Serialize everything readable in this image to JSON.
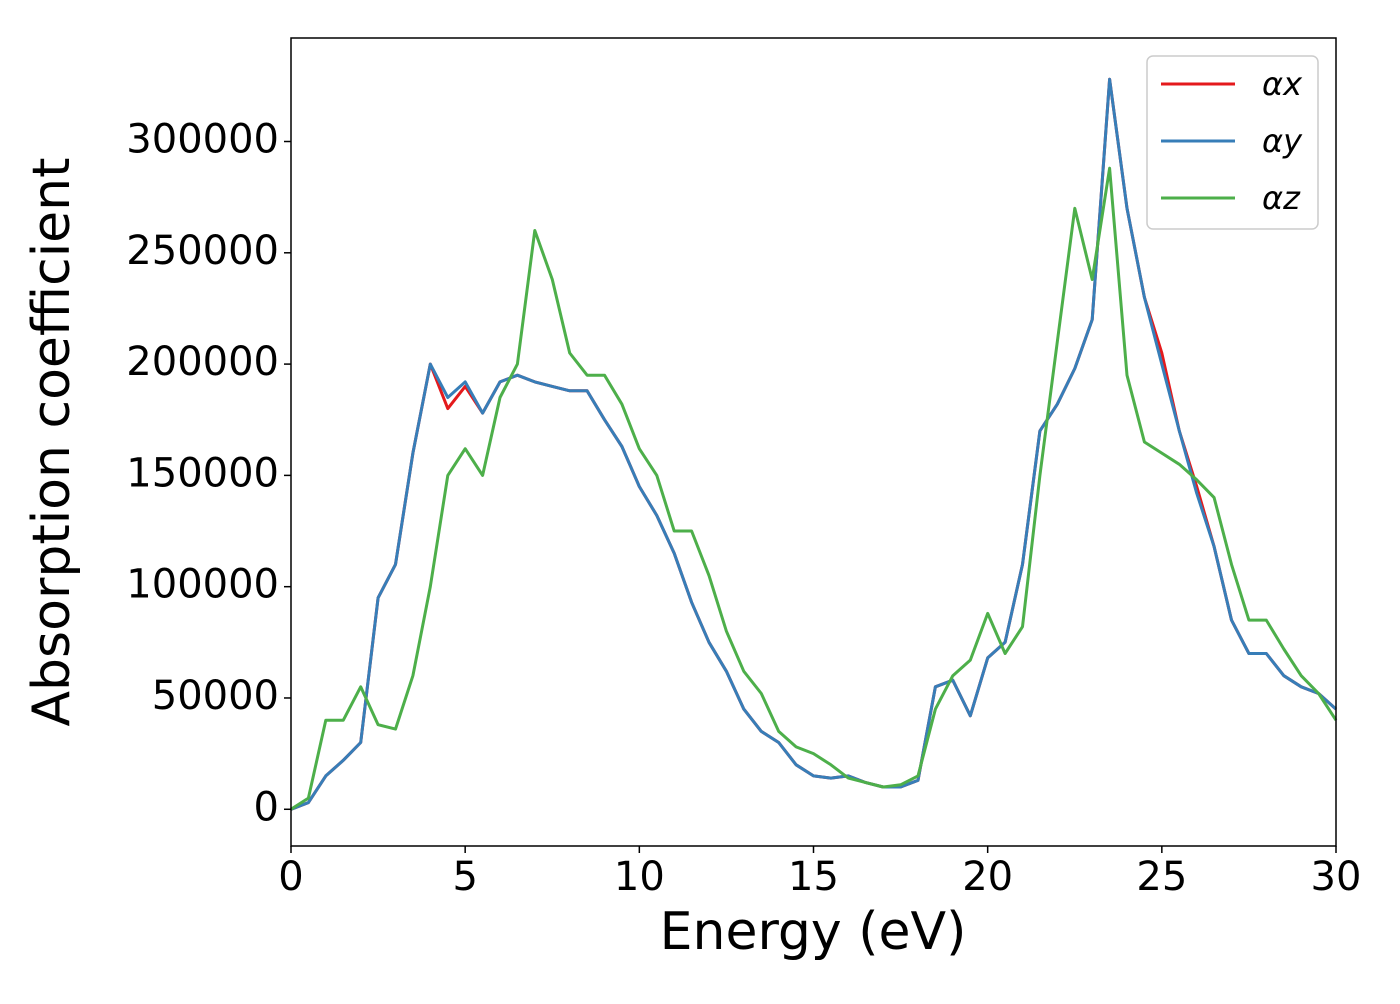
{
  "chart_data": {
    "type": "line",
    "xlabel": "Energy (eV)",
    "ylabel": "Absorption coefficient",
    "x": [
      0,
      0.5,
      1,
      1.5,
      2,
      2.5,
      3,
      3.5,
      4,
      4.5,
      5,
      5.5,
      6,
      6.5,
      7,
      7.5,
      8,
      8.5,
      9,
      9.5,
      10,
      10.5,
      11,
      11.5,
      12,
      12.5,
      13,
      13.5,
      14,
      14.5,
      15,
      15.5,
      16,
      16.5,
      17,
      17.5,
      18,
      18.5,
      19,
      19.5,
      20,
      20.5,
      21,
      21.5,
      22,
      22.5,
      23,
      23.5,
      24,
      24.5,
      25,
      25.5,
      26,
      26.5,
      27,
      27.5,
      28,
      28.5,
      29,
      29.5,
      30
    ],
    "series": [
      {
        "name": "αx",
        "color": "#e41a1c",
        "values": [
          0,
          3000,
          15000,
          22000,
          30000,
          95000,
          110000,
          160000,
          200000,
          180000,
          190000,
          178000,
          192000,
          195000,
          192000,
          190000,
          188000,
          188000,
          175000,
          163000,
          145000,
          132000,
          115000,
          93000,
          75000,
          62000,
          45000,
          35000,
          30000,
          20000,
          15000,
          14000,
          15000,
          12000,
          10000,
          10000,
          13000,
          55000,
          58000,
          42000,
          68000,
          75000,
          110000,
          170000,
          182000,
          198000,
          220000,
          328000,
          270000,
          230000,
          205000,
          170000,
          145000,
          118000,
          85000,
          70000,
          70000,
          60000,
          55000,
          52000,
          45000
        ]
      },
      {
        "name": "αy",
        "color": "#377eb8",
        "values": [
          0,
          3000,
          15000,
          22000,
          30000,
          95000,
          110000,
          160000,
          200000,
          185000,
          192000,
          178000,
          192000,
          195000,
          192000,
          190000,
          188000,
          188000,
          175000,
          163000,
          145000,
          132000,
          115000,
          93000,
          75000,
          62000,
          45000,
          35000,
          30000,
          20000,
          15000,
          14000,
          15000,
          12000,
          10000,
          10000,
          13000,
          55000,
          58000,
          42000,
          68000,
          75000,
          110000,
          170000,
          182000,
          198000,
          220000,
          328000,
          270000,
          230000,
          200000,
          170000,
          142000,
          118000,
          85000,
          70000,
          70000,
          60000,
          55000,
          52000,
          45000
        ]
      },
      {
        "name": "αz",
        "color": "#4daf4a",
        "values": [
          0,
          5000,
          40000,
          40000,
          55000,
          38000,
          36000,
          60000,
          100000,
          150000,
          162000,
          150000,
          185000,
          200000,
          260000,
          238000,
          205000,
          195000,
          195000,
          182000,
          162000,
          150000,
          125000,
          125000,
          105000,
          80000,
          62000,
          52000,
          35000,
          28000,
          25000,
          20000,
          14000,
          12000,
          10000,
          11000,
          15000,
          45000,
          60000,
          67000,
          88000,
          70000,
          82000,
          150000,
          210000,
          270000,
          238000,
          288000,
          195000,
          165000,
          160000,
          155000,
          148000,
          140000,
          110000,
          85000,
          85000,
          72000,
          60000,
          52000,
          40000
        ]
      }
    ],
    "xlim": [
      0,
      30
    ],
    "ylim": [
      -16500,
      346500
    ],
    "xticks": [
      0,
      5,
      10,
      15,
      20,
      25,
      30
    ],
    "yticks": [
      0,
      50000,
      100000,
      150000,
      200000,
      250000,
      300000
    ],
    "legend": "upper right"
  }
}
